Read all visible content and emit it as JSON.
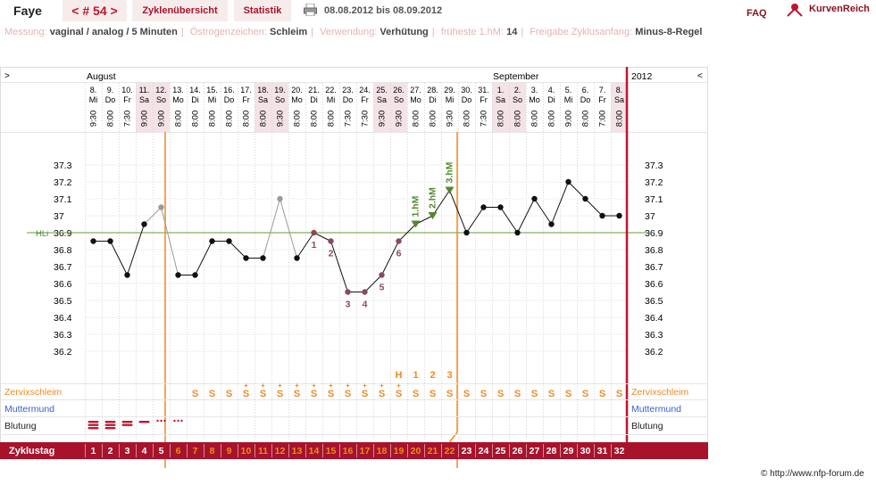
{
  "header": {
    "name": "Faye",
    "cycle_nav": "< # 54 >",
    "tab_overview": "Zyklenübersicht",
    "tab_stats": "Statistik",
    "date_range": "08.08.2012 bis 08.09.2012",
    "faq": "FAQ",
    "logo": "KurvenReich"
  },
  "info": {
    "messung_label": "Messung:",
    "messung_value": "vaginal / analog / 5 Minuten",
    "oestrogen_label": "Östrogenzeichen:",
    "oestrogen_value": "Schleim",
    "verwendung_label": "Verwendung:",
    "verwendung_value": "Verhütung",
    "hm_label": "früheste 1.hM:",
    "hm_value": "14",
    "freigabe_label": "Freigabe Zyklusanfang:",
    "freigabe_value": "Minus-8-Regel"
  },
  "chart_data": {
    "type": "line",
    "months": {
      "left": "August",
      "right": "September",
      "year": "2012",
      "left_arrow": ">",
      "right_arrow": "<"
    },
    "dates": [
      "8.",
      "9.",
      "10.",
      "11.",
      "12.",
      "13.",
      "14.",
      "15.",
      "16.",
      "17.",
      "18.",
      "19.",
      "20.",
      "21.",
      "22.",
      "23.",
      "24.",
      "25.",
      "26.",
      "27.",
      "28.",
      "29.",
      "30.",
      "31.",
      "1.",
      "2.",
      "3.",
      "4.",
      "5.",
      "6.",
      "7.",
      "8."
    ],
    "weekdays": [
      "Mi",
      "Do",
      "Fr",
      "Sa",
      "So",
      "Mo",
      "Di",
      "Mi",
      "Do",
      "Fr",
      "Sa",
      "So",
      "Mo",
      "Di",
      "Mi",
      "Do",
      "Fr",
      "Sa",
      "So",
      "Mo",
      "Di",
      "Mi",
      "Do",
      "Fr",
      "Sa",
      "So",
      "Mo",
      "Di",
      "Mi",
      "Do",
      "Fr",
      "Sa"
    ],
    "times": [
      "9:30",
      "8:00",
      "7:30",
      "9:00",
      "9:00",
      "8:00",
      "8:00",
      "8:00",
      "8:00",
      "8:00",
      "8:00",
      "9:30",
      "8:00",
      "8:00",
      "8:00",
      "7:30",
      "7:30",
      "9:30",
      "9:30",
      "8:00",
      "8:00",
      "9:30",
      "8:00",
      "7:30",
      "8:00",
      "8:00",
      "8:00",
      "8:00",
      "9:00",
      "8:00",
      "7:00",
      "8:00"
    ],
    "weekend": [
      false,
      false,
      false,
      true,
      true,
      false,
      false,
      false,
      false,
      false,
      true,
      true,
      false,
      false,
      false,
      false,
      false,
      true,
      true,
      false,
      false,
      false,
      false,
      false,
      true,
      true,
      false,
      false,
      false,
      false,
      false,
      true
    ],
    "temperatures": [
      36.85,
      36.85,
      36.65,
      36.95,
      37.05,
      36.65,
      36.65,
      36.85,
      36.85,
      36.75,
      36.75,
      37.1,
      36.75,
      36.9,
      36.85,
      36.55,
      36.55,
      36.65,
      36.85,
      36.95,
      37.0,
      37.15,
      36.9,
      37.05,
      37.05,
      36.9,
      37.1,
      36.95,
      37.2,
      37.1,
      37.0,
      37.0
    ],
    "excluded": [
      false,
      false,
      false,
      false,
      true,
      false,
      false,
      false,
      false,
      false,
      false,
      true,
      false,
      false,
      false,
      false,
      false,
      false,
      false,
      false,
      false,
      false,
      false,
      false,
      false,
      false,
      false,
      false,
      false,
      false,
      false,
      false
    ],
    "yticks": [
      "37.3",
      "37.2",
      "37.1",
      "37",
      "36.9",
      "36.8",
      "36.7",
      "36.6",
      "36.5",
      "36.4",
      "36.3",
      "36.2"
    ],
    "ylim": [
      36.15,
      37.35
    ],
    "cover_line": {
      "value": 36.9,
      "label": "HLi"
    },
    "low_labels": [
      {
        "day": 14,
        "label": "1"
      },
      {
        "day": 15,
        "label": "2"
      },
      {
        "day": 16,
        "label": "3"
      },
      {
        "day": 17,
        "label": "4"
      },
      {
        "day": 18,
        "label": "5"
      },
      {
        "day": 19,
        "label": "6"
      }
    ],
    "high_measures": [
      {
        "day": 20,
        "label": "1.hM"
      },
      {
        "day": 21,
        "label": "2.hM"
      },
      {
        "day": 22,
        "label": "3.hM"
      }
    ],
    "mucus_peak_row": [
      "H",
      "1",
      "2",
      "3"
    ],
    "mucus_peak_days": [
      19,
      20,
      21,
      22
    ],
    "mucus_label": "Zervixschleim",
    "mucus": [
      "",
      "",
      "",
      "",
      "",
      "",
      "S",
      "S",
      "S",
      "S+",
      "S+",
      "S+",
      "S+",
      "S+",
      "S+",
      "S+",
      "S+",
      "S+",
      "S+",
      "S",
      "S",
      "S",
      "S",
      "S",
      "S",
      "S",
      "S",
      "S",
      "S",
      "S",
      "S",
      "S"
    ],
    "cervix_label": "Muttermund",
    "bleeding_label": "Blutung",
    "bleeding": [
      3,
      3,
      2,
      1,
      0.5,
      0.5,
      0,
      0,
      0,
      0,
      0,
      0,
      0,
      0,
      0,
      0,
      0,
      0,
      0,
      0,
      0,
      0,
      0,
      0,
      0,
      0,
      0,
      0,
      0,
      0,
      0,
      0
    ],
    "cycleday_label": "Zyklustag",
    "cycledays": [
      "1",
      "2",
      "3",
      "4",
      "5",
      "6",
      "7",
      "8",
      "9",
      "10",
      "11",
      "12",
      "13",
      "14",
      "15",
      "16",
      "17",
      "18",
      "19",
      "20",
      "21",
      "22",
      "23",
      "24",
      "25",
      "26",
      "27",
      "28",
      "29",
      "30",
      "31",
      "32"
    ],
    "fertile_start_day": 6,
    "fertile_end_day": 22,
    "colors": {
      "accent": "#a8132b",
      "orange": "#ef8a1f",
      "green": "#4f8a2b",
      "lowlabel": "#8b4a5a",
      "cervix": "#3a5fc8"
    }
  },
  "copyright": "© http://www.nfp-forum.de"
}
